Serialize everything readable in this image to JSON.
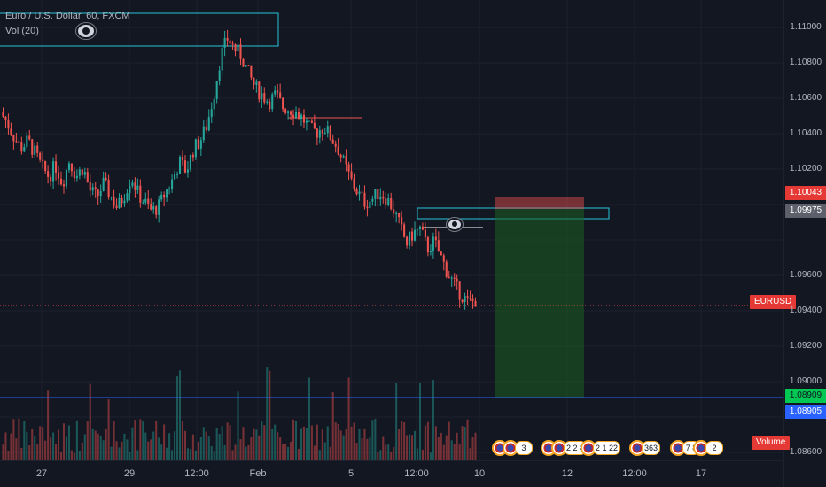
{
  "legend": {
    "symbol": "Euro / U.S. Dollar, 60, FXCM",
    "indicator": "Vol (20)"
  },
  "axis": {
    "price_ticks": [
      "1.11000",
      "1.10800",
      "1.10600",
      "1.10400",
      "1.10200",
      "1.09600",
      "1.09400",
      "1.09200",
      "1.09000",
      "1.08600"
    ],
    "time_ticks": [
      "27",
      "29",
      "12:00",
      "Feb",
      "5",
      "12:00",
      "10",
      "12",
      "12:00",
      "17"
    ]
  },
  "price_labels": {
    "stop_loss": "1.10043",
    "entry": "1.09975",
    "target": "1.08909",
    "line": "1.08905",
    "current_symbol": "EURUSD",
    "volume": "Volume"
  },
  "events": [
    {
      "count": "3"
    },
    {
      "count": "2 2 8"
    },
    {
      "count": "2 1 22"
    },
    {
      "count": "363"
    },
    {
      "count": "7 8"
    },
    {
      "count": "2"
    }
  ],
  "colors": {
    "background": "#131722",
    "up": "#26a69a",
    "down": "#ef5350",
    "grid": "#1e222d",
    "stop_label": "#e53935",
    "target_label": "#00c853",
    "line_label": "#2962ff",
    "zone": "#26c6da"
  },
  "chart_data": {
    "type": "candlestick",
    "symbol": "EURUSD",
    "timeframe": "60",
    "ylim": [
      1.086,
      1.111
    ],
    "position": {
      "side": "short",
      "entry": 1.09975,
      "stop": 1.10043,
      "target": 1.08909
    },
    "last_price": 1.0943,
    "price_path": [
      1.1052,
      1.1046,
      1.1038,
      1.1032,
      1.1036,
      1.1029,
      1.1021,
      1.1016,
      1.1022,
      1.1012,
      1.1025,
      1.1016,
      1.1021,
      1.1008,
      1.1004,
      1.1012,
      1.1005,
      1.0998,
      1.1006,
      1.1016,
      1.1006,
      1.1001,
      1.0996,
      1.0999,
      1.1007,
      1.1014,
      1.1024,
      1.1019,
      1.1031,
      1.1036,
      1.1045,
      1.1062,
      1.1084,
      1.1094,
      1.1088,
      1.1084,
      1.1074,
      1.1066,
      1.1062,
      1.1058,
      1.1062,
      1.1055,
      1.1054,
      1.1052,
      1.1048,
      1.1042,
      1.1041,
      1.1044,
      1.1038,
      1.1032,
      1.1022,
      1.1013,
      1.1006,
      1.1001,
      1.1003,
      1.1007,
      1.1004,
      1.0998,
      1.0988,
      1.0978,
      1.0984,
      1.0986,
      1.0975,
      1.0979,
      1.097,
      1.0961,
      1.0954,
      1.0949,
      1.0944,
      1.0946
    ]
  }
}
